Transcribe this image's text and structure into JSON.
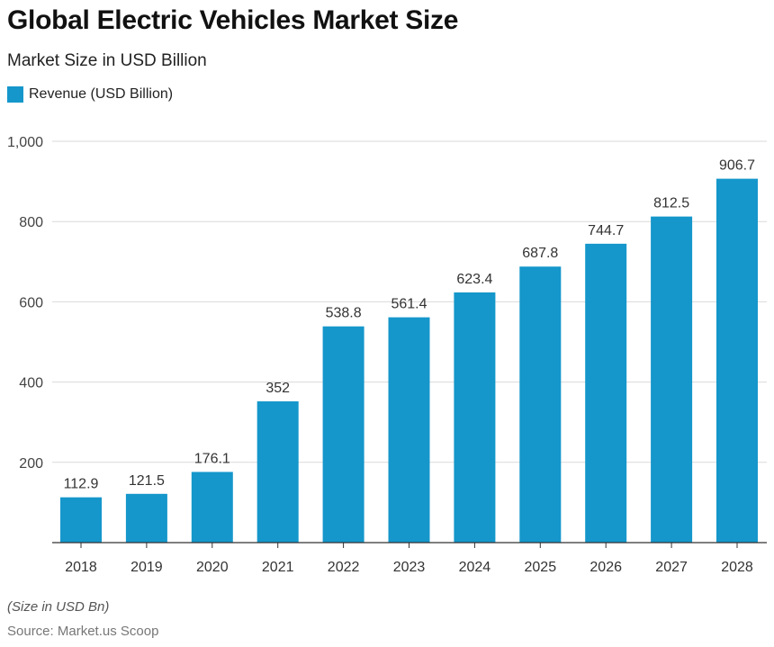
{
  "header": {
    "title": "Global Electric Vehicles Market Size",
    "subtitle": "Market Size in USD Billion"
  },
  "legend": {
    "label": "Revenue (USD Billion)"
  },
  "colors": {
    "bar": "#1597cb",
    "grid": "#d9d9d9",
    "axis": "#333333"
  },
  "chart_data": {
    "type": "bar",
    "categories": [
      "2018",
      "2019",
      "2020",
      "2021",
      "2022",
      "2023",
      "2024",
      "2025",
      "2026",
      "2027",
      "2028"
    ],
    "series": [
      {
        "name": "Revenue (USD Billion)",
        "values": [
          112.9,
          121.5,
          176.1,
          352,
          538.8,
          561.4,
          623.4,
          687.8,
          744.7,
          812.5,
          906.7
        ]
      }
    ],
    "value_labels": [
      "112.9",
      "121.5",
      "176.1",
      "352",
      "538.8",
      "561.4",
      "623.4",
      "687.8",
      "744.7",
      "812.5",
      "906.7"
    ],
    "ylim": [
      0,
      1000
    ],
    "yticks": [
      200,
      400,
      600,
      800,
      1000
    ],
    "ytick_labels": [
      "200",
      "400",
      "600",
      "800",
      "1,000"
    ],
    "grid": true,
    "legend_position": "top-left"
  },
  "footer": {
    "note": "(Size in USD Bn)",
    "source": "Source: Market.us Scoop"
  }
}
